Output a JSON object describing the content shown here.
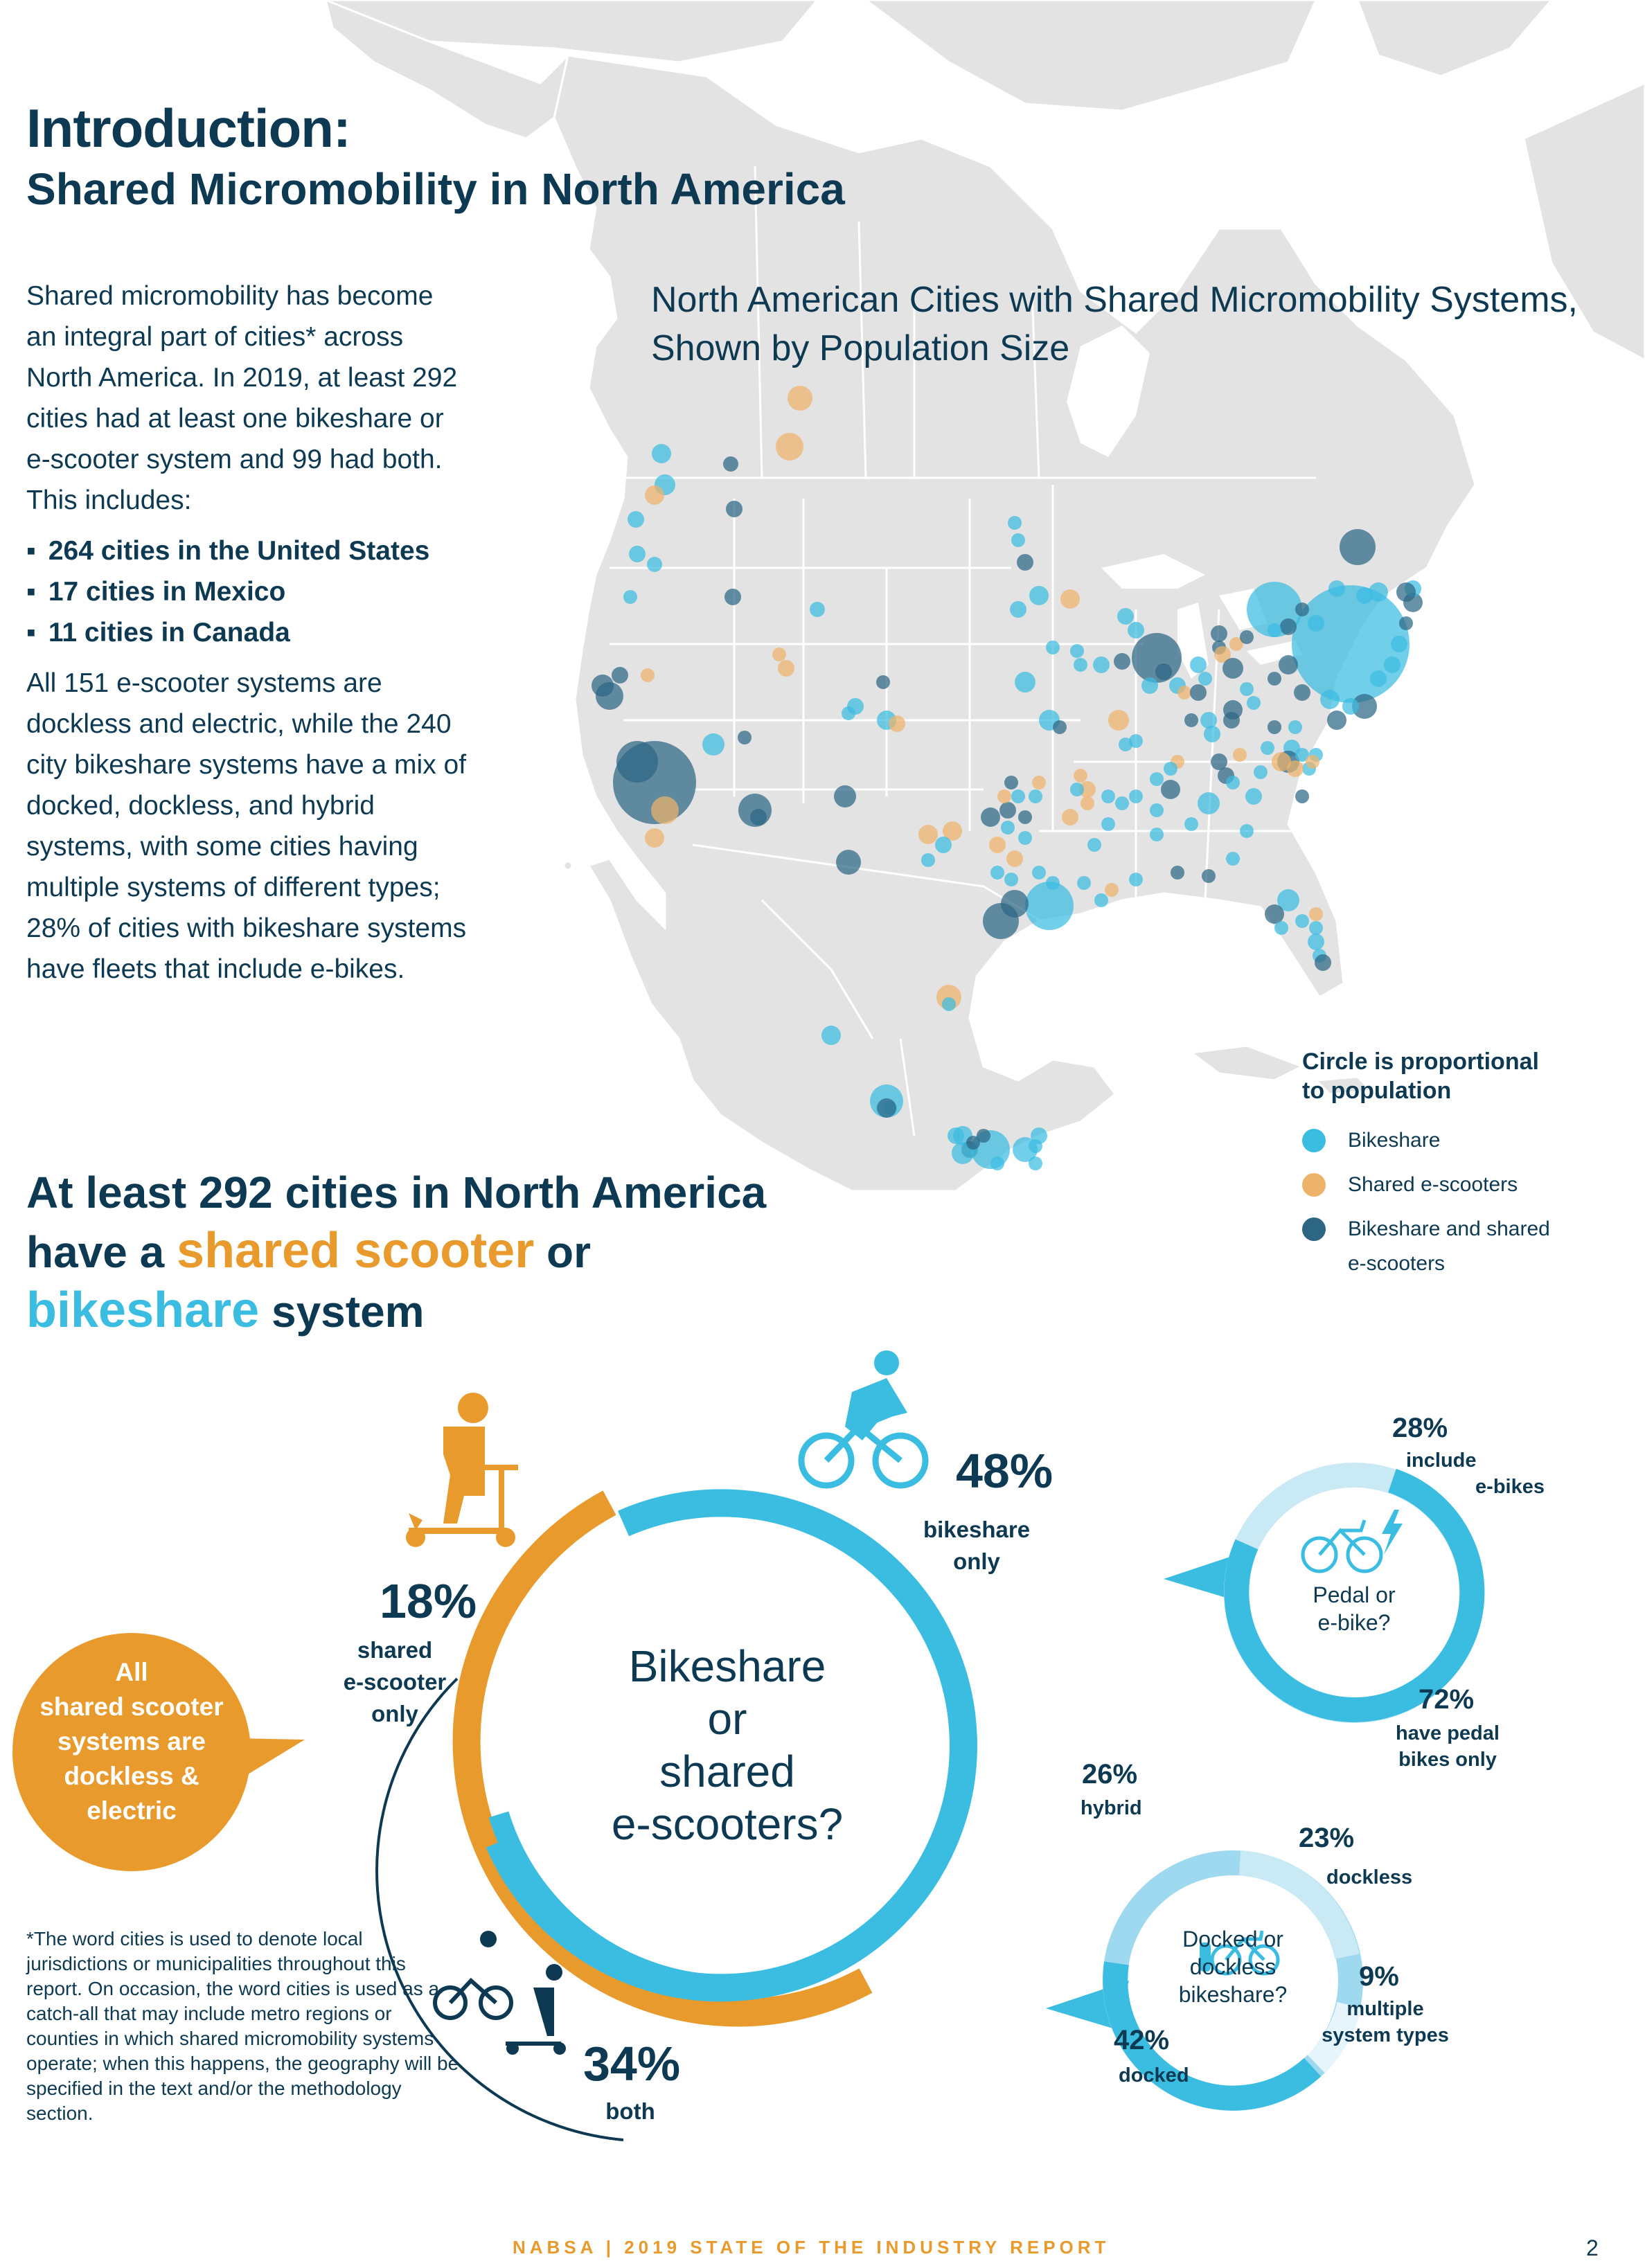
{
  "header": {
    "title": "Introduction:",
    "subtitle": "Shared Micromobility in North America"
  },
  "intro": {
    "paragraph1": "Shared micromobility has become an integral part of cities* across North America. In 2019, at least 292 cities had at least one bikeshare or e-scooter system and 99 had both.",
    "includes_label": "This includes:",
    "bullets": [
      "264 cities in the United States",
      "17 cities in Mexico",
      "11 cities in Canada"
    ],
    "paragraph2": "All 151 e-scooter systems are dockless and electric, while the 240 city bikeshare systems have a mix of docked, dockless, and hybrid systems, with some cities having multiple systems of different types; 28% of cities with bikeshare systems have fleets that include e-bikes."
  },
  "map": {
    "title_line1": "North American Cities with Shared Micromobility Systems,",
    "title_line2": "Shown by Population Size",
    "legend": {
      "title_line1": "Circle is proportional",
      "title_line2": "to population",
      "items": [
        {
          "label": "Bikeshare",
          "color": "#3bbde2"
        },
        {
          "label": "Shared e-scooters",
          "color": "#eeb36b"
        },
        {
          "label": "Bikeshare and shared",
          "label2": "e-scooters",
          "color": "#2d6683"
        }
      ]
    }
  },
  "headline": {
    "line1": "At least 292 cities in North America",
    "line2_pre": "have a ",
    "line2_scooter": "shared scooter",
    "line2_post": " or",
    "line3_bike": "bikeshare",
    "line3_post": " system"
  },
  "donut": {
    "center_line1": "Bikeshare",
    "center_line2": "or",
    "center_line3": "shared",
    "center_line4": "e-scooters?",
    "segments": [
      {
        "name": "bikeshare only",
        "value": 48,
        "pct": "48",
        "label1": "bikeshare",
        "label2": "only",
        "color": "#3bbde2"
      },
      {
        "name": "shared e-scooter only",
        "value": 18,
        "pct": "18",
        "label1": "shared",
        "label2": "e-scooter",
        "label3": "only",
        "color": "#e89a2c"
      },
      {
        "name": "both",
        "value": 34,
        "pct": "34",
        "label1": "both",
        "color": "#3bbde2"
      }
    ],
    "percent_sign": "%"
  },
  "bubble": {
    "line1": "All",
    "line2": "shared scooter",
    "line3": "systems are",
    "line4": "dockless &",
    "line5": "electric"
  },
  "ebike_chart": {
    "question_line1": "Pedal or",
    "question_line2": "e-bike?",
    "segments": [
      {
        "pct": "28%",
        "value": 28,
        "label1": "include",
        "label2": "e-bikes",
        "color": "#c9e9f5"
      },
      {
        "pct": "72%",
        "value": 72,
        "label1": "have pedal",
        "label2": "bikes only",
        "color": "#3bbde2"
      }
    ]
  },
  "docked_chart": {
    "question_line1": "Docked or",
    "question_line2": "dockless",
    "question_line3": "bikeshare?",
    "segments": [
      {
        "pct": "26%",
        "value": 26,
        "label1": "hybrid",
        "color": "#9fd9ef"
      },
      {
        "pct": "23%",
        "value": 23,
        "label1": "dockless",
        "color": "#c9e9f5"
      },
      {
        "pct": "9%",
        "value": 9,
        "label1": "multiple",
        "label2": "system types",
        "color": "#e6f5fb"
      },
      {
        "pct": "42%",
        "value": 42,
        "label1": "docked",
        "color": "#3bbde2"
      }
    ]
  },
  "footnote": "*The word cities is used to denote local jurisdictions or municipalities throughout this report. On occasion, the word cities is used as a catch-all that may include metro regions or counties in which shared micromobility systems operate; when this happens, the geography will be specified in the text and/or the methodology section.",
  "footer": {
    "text": "NABSA | 2019 STATE OF THE INDUSTRY REPORT",
    "page": "2"
  }
}
